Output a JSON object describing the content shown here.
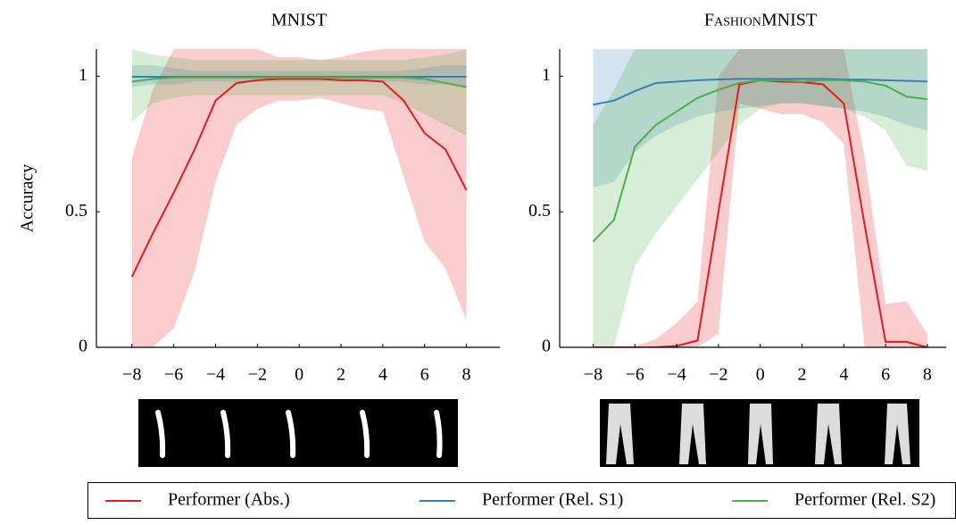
{
  "chart_data": [
    {
      "type": "line",
      "title": "MNIST",
      "y_label": "Accuracy",
      "x": [
        -8,
        -7,
        -6,
        -5,
        -4,
        -3,
        -2,
        -1,
        0,
        1,
        2,
        3,
        4,
        5,
        6,
        7,
        8
      ],
      "xlim": [
        -9.7,
        9.6
      ],
      "ylim": [
        0,
        1.1
      ],
      "xticks": [
        -8,
        -6,
        -4,
        -2,
        0,
        2,
        4,
        6,
        8
      ],
      "yticks": [
        0,
        0.5,
        1
      ],
      "series": [
        {
          "name": "Performer (Abs.)",
          "color": "#e41a1c",
          "values": [
            0.26,
            0.42,
            0.57,
            0.73,
            0.91,
            0.975,
            0.985,
            0.99,
            0.99,
            0.99,
            0.985,
            0.985,
            0.98,
            0.91,
            0.79,
            0.73,
            0.58
          ],
          "lower": [
            0,
            0,
            0.07,
            0.28,
            0.61,
            0.82,
            0.88,
            0.91,
            0.91,
            0.92,
            0.9,
            0.88,
            0.87,
            0.63,
            0.39,
            0.29,
            0.1
          ],
          "upper": [
            0.7,
            0.95,
            1.1,
            1.1,
            1.1,
            1.1,
            1.1,
            1.07,
            1.07,
            1.06,
            1.07,
            1.09,
            1.1,
            1.1,
            1.1,
            1.1,
            1.1
          ]
        },
        {
          "name": "Performer (Rel. S1)",
          "color": "#377eb8",
          "values": [
            0.998,
            0.998,
            0.998,
            0.998,
            0.998,
            0.998,
            0.998,
            0.998,
            0.998,
            0.998,
            0.998,
            0.998,
            0.998,
            0.998,
            0.998,
            0.998,
            0.998
          ],
          "lower": [
            0.96,
            0.97,
            0.97,
            0.98,
            0.98,
            0.98,
            0.98,
            0.98,
            0.98,
            0.98,
            0.98,
            0.98,
            0.98,
            0.98,
            0.97,
            0.97,
            0.96
          ],
          "upper": [
            1.04,
            1.04,
            1.03,
            1.02,
            1.02,
            1.02,
            1.02,
            1.02,
            1.02,
            1.02,
            1.02,
            1.02,
            1.02,
            1.02,
            1.03,
            1.04,
            1.04
          ]
        },
        {
          "name": "Performer (Rel. S2)",
          "color": "#4daf4a",
          "values": [
            0.98,
            0.99,
            0.995,
            0.995,
            0.995,
            0.995,
            0.995,
            0.995,
            0.995,
            0.995,
            0.995,
            0.995,
            0.995,
            0.995,
            0.99,
            0.975,
            0.96
          ],
          "lower": [
            0.83,
            0.9,
            0.92,
            0.93,
            0.93,
            0.93,
            0.93,
            0.93,
            0.93,
            0.93,
            0.93,
            0.93,
            0.93,
            0.9,
            0.86,
            0.82,
            0.78
          ],
          "upper": [
            1.1,
            1.08,
            1.07,
            1.06,
            1.06,
            1.06,
            1.06,
            1.06,
            1.06,
            1.06,
            1.06,
            1.06,
            1.06,
            1.06,
            1.07,
            1.08,
            1.1
          ]
        }
      ]
    },
    {
      "type": "line",
      "title": "FashionMNIST",
      "x": [
        -8,
        -7,
        -6,
        -5,
        -4,
        -3,
        -2,
        -1,
        0,
        1,
        2,
        3,
        4,
        5,
        6,
        7,
        8
      ],
      "xlim": [
        -9.6,
        8.9
      ],
      "ylim": [
        0,
        1.1
      ],
      "xticks": [
        -8,
        -6,
        -4,
        -2,
        0,
        2,
        4,
        6,
        8
      ],
      "yticks": [
        0,
        0.5,
        1
      ],
      "series": [
        {
          "color": "#e41a1c",
          "values": [
            0,
            0,
            0,
            0,
            0.005,
            0.025,
            0.5,
            0.97,
            0.985,
            0.98,
            0.978,
            0.97,
            0.9,
            0.45,
            0.02,
            0.02,
            0
          ],
          "lower": [
            0,
            0,
            0,
            0,
            0,
            0,
            0.05,
            0.9,
            0.88,
            0.86,
            0.86,
            0.83,
            0.75,
            0,
            0,
            0,
            0
          ],
          "upper": [
            0,
            0,
            0.005,
            0.03,
            0.09,
            0.17,
            1.0,
            1.1,
            1.1,
            1.1,
            1.1,
            1.1,
            1.1,
            0.7,
            0.16,
            0.17,
            0.05
          ]
        },
        {
          "color": "#377eb8",
          "values": [
            0.895,
            0.91,
            0.945,
            0.975,
            0.98,
            0.985,
            0.988,
            0.99,
            0.99,
            0.99,
            0.99,
            0.99,
            0.988,
            0.987,
            0.985,
            0.983,
            0.98
          ],
          "lower": [
            0.59,
            0.61,
            0.72,
            0.78,
            0.82,
            0.85,
            0.87,
            0.88,
            0.89,
            0.9,
            0.9,
            0.89,
            0.88,
            0.87,
            0.85,
            0.82,
            0.8
          ],
          "upper": [
            1.1,
            1.1,
            1.1,
            1.1,
            1.1,
            1.1,
            1.1,
            1.1,
            1.1,
            1.1,
            1.1,
            1.1,
            1.1,
            1.1,
            1.1,
            1.1,
            1.1
          ]
        },
        {
          "color": "#4daf4a",
          "values": [
            0.39,
            0.47,
            0.74,
            0.82,
            0.87,
            0.92,
            0.95,
            0.975,
            0.985,
            0.985,
            0.98,
            0.985,
            0.985,
            0.98,
            0.965,
            0.925,
            0.915
          ],
          "lower": [
            0,
            0,
            0.3,
            0.42,
            0.52,
            0.62,
            0.72,
            0.82,
            0.88,
            0.9,
            0.9,
            0.89,
            0.88,
            0.85,
            0.8,
            0.67,
            0.65
          ],
          "upper": [
            0.82,
            0.95,
            1.1,
            1.1,
            1.1,
            1.1,
            1.1,
            1.1,
            1.1,
            1.1,
            1.1,
            1.1,
            1.1,
            1.1,
            1.1,
            1.1,
            1.1
          ]
        }
      ]
    }
  ]
}
